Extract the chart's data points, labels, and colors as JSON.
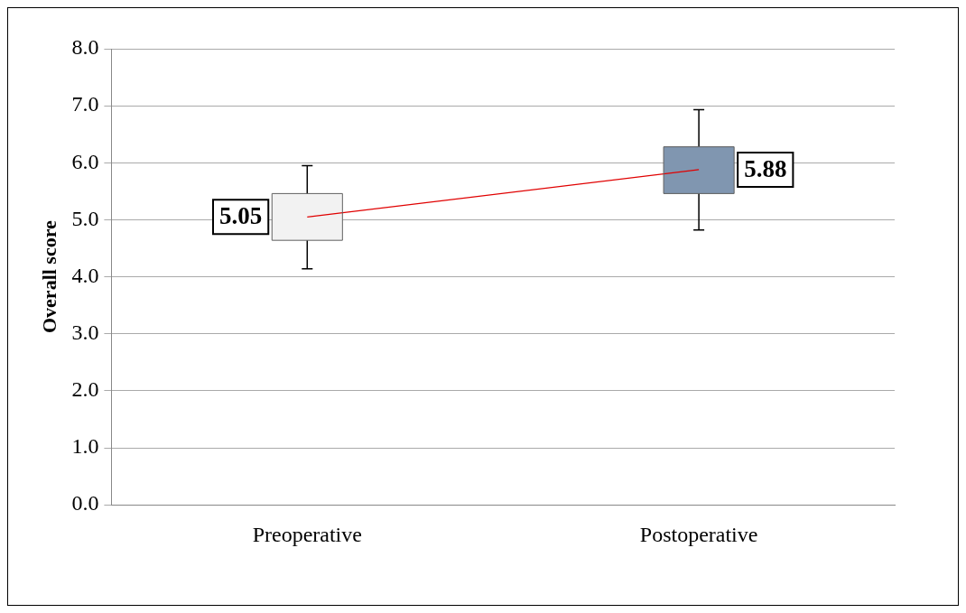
{
  "chart_data": {
    "type": "box",
    "ylabel": "Overall score",
    "categories": [
      "Preoperative",
      "Postoperative"
    ],
    "boxes": [
      {
        "low": 4.14,
        "q1": 4.64,
        "q3": 5.46,
        "high": 5.95
      },
      {
        "low": 4.82,
        "q1": 5.46,
        "q3": 6.28,
        "high": 6.93
      }
    ],
    "colors": [
      "#f2f2f2",
      "#8096b0"
    ],
    "series": [
      {
        "type": "line",
        "color": "#e00000",
        "values": [
          5.05,
          5.88
        ]
      }
    ],
    "annotations": [
      {
        "text": "5.05",
        "x": "Preoperative",
        "y": 5.05
      },
      {
        "text": "5.88",
        "x": "Postoperative",
        "y": 5.88
      }
    ],
    "ylim": [
      0,
      8
    ],
    "yticks": [
      {
        "value": 0,
        "label": "0.0"
      },
      {
        "value": 1,
        "label": "1.0"
      },
      {
        "value": 2,
        "label": "2.0"
      },
      {
        "value": 3,
        "label": "3.0"
      },
      {
        "value": 4,
        "label": "4.0"
      },
      {
        "value": 5,
        "label": "5.0"
      },
      {
        "value": 6,
        "label": "6.0"
      },
      {
        "value": 7,
        "label": "7.0"
      },
      {
        "value": 8,
        "label": "8.0"
      }
    ],
    "grid": "y",
    "legend": false
  }
}
